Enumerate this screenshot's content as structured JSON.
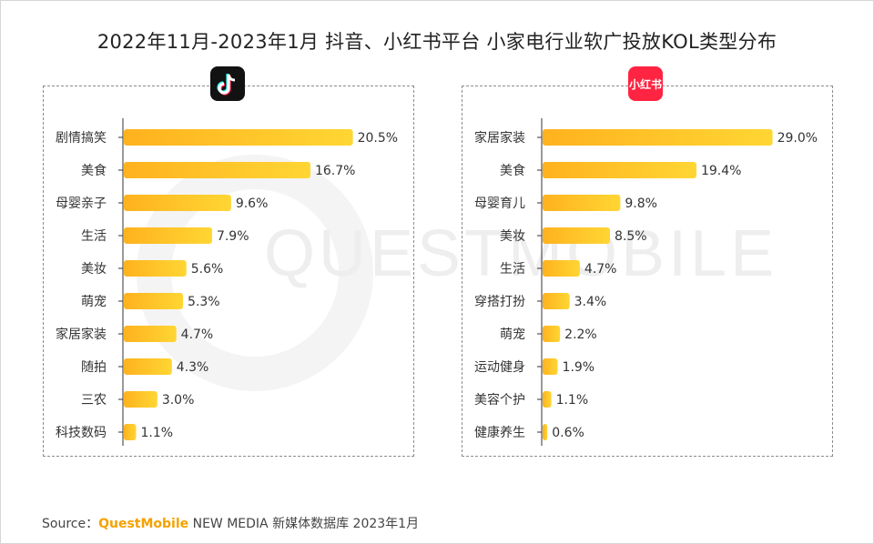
{
  "title": "2022年11月-2023年1月 抖音、小红书平台 小家电行业软广投放KOL类型分布",
  "watermark": "QUESTMOBILE",
  "colors": {
    "bar_start": "#ffb21e",
    "bar_end": "#ffd633",
    "axis": "#333333",
    "panel_border": "#8c8c8c"
  },
  "logos": {
    "left": "douyin-icon",
    "right_text": "小红书"
  },
  "source": {
    "prefix": "Source：",
    "brand": "QuestMobile",
    "suffix": "NEW MEDIA 新媒体数据库 2023年1月"
  },
  "chart_data": [
    {
      "type": "bar",
      "orientation": "horizontal",
      "platform": "抖音",
      "categories": [
        "剧情搞笑",
        "美食",
        "母婴亲子",
        "生活",
        "美妆",
        "萌宠",
        "家居家装",
        "随拍",
        "三农",
        "科技数码"
      ],
      "values": [
        20.5,
        16.7,
        9.6,
        7.9,
        5.6,
        5.3,
        4.7,
        4.3,
        3.0,
        1.1
      ],
      "value_labels": [
        "20.5%",
        "16.7%",
        "9.6%",
        "7.9%",
        "5.6%",
        "5.3%",
        "4.7%",
        "4.3%",
        "3.0%",
        "1.1%"
      ],
      "xlim": [
        0,
        22
      ]
    },
    {
      "type": "bar",
      "orientation": "horizontal",
      "platform": "小红书",
      "categories": [
        "家居家装",
        "美食",
        "母婴育儿",
        "美妆",
        "生活",
        "穿搭打扮",
        "萌宠",
        "运动健身",
        "美容个护",
        "健康养生"
      ],
      "values": [
        29.0,
        19.4,
        9.8,
        8.5,
        4.7,
        3.4,
        2.2,
        1.9,
        1.1,
        0.6
      ],
      "value_labels": [
        "29.0%",
        "19.4%",
        "9.8%",
        "8.5%",
        "4.7%",
        "3.4%",
        "2.2%",
        "1.9%",
        "1.1%",
        "0.6%"
      ],
      "xlim": [
        0,
        31
      ]
    }
  ]
}
